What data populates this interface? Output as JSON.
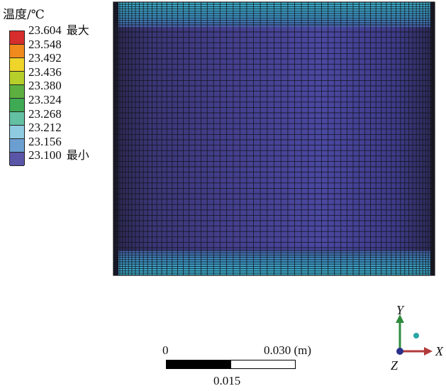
{
  "legend": {
    "title": "温度/℃",
    "entries": [
      {
        "value": "23.604",
        "suffix": "最大",
        "color": "#d62d2d"
      },
      {
        "value": "23.548",
        "suffix": "",
        "color": "#f08a1c"
      },
      {
        "value": "23.492",
        "suffix": "",
        "color": "#efd42a"
      },
      {
        "value": "23.436",
        "suffix": "",
        "color": "#b6cf2a"
      },
      {
        "value": "23.380",
        "suffix": "",
        "color": "#5db040"
      },
      {
        "value": "23.324",
        "suffix": "",
        "color": "#3eaa54"
      },
      {
        "value": "23.268",
        "suffix": "",
        "color": "#63c0a3"
      },
      {
        "value": "23.212",
        "suffix": "",
        "color": "#8fcbe0"
      },
      {
        "value": "23.156",
        "suffix": "",
        "color": "#6b9fd2"
      },
      {
        "value": "23.100",
        "suffix": "最小",
        "color": "#5a55a6"
      }
    ]
  },
  "scale_bar": {
    "label_left": "0",
    "label_right": "0.030 (m)",
    "label_mid": "0.015"
  },
  "axes": {
    "y_label": "Y",
    "x_label": "X",
    "z_label": "Z",
    "y_color": "#2e8b3e",
    "x_color": "#b23a3a",
    "z_color": "#2a2f8a"
  },
  "field": {
    "core_color": "#443e8a",
    "band_color": "#3aa7c4",
    "mesh_color": "#14141e"
  }
}
